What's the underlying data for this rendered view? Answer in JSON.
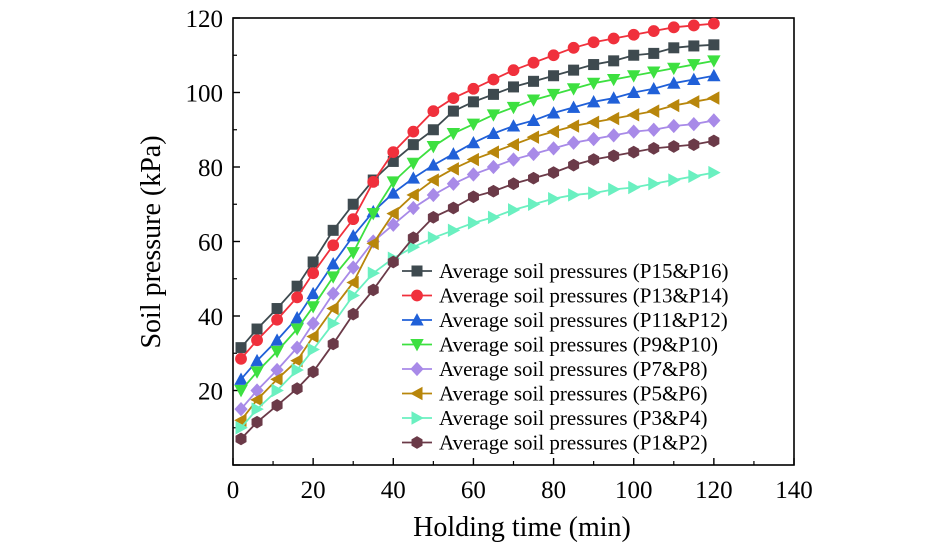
{
  "chart_data": {
    "type": "line",
    "title": "",
    "xlabel": "Holding time (min)",
    "ylabel": "Soil pressure (kPa)",
    "xlim": [
      0,
      140
    ],
    "ylim": [
      0,
      120
    ],
    "xticks": [
      0,
      20,
      40,
      60,
      80,
      100,
      120,
      140
    ],
    "yticks": [
      20,
      40,
      60,
      80,
      100,
      120
    ],
    "grid": false,
    "legend_position": "center-right",
    "x": [
      2,
      6,
      11,
      16,
      20,
      25,
      30,
      35,
      40,
      45,
      50,
      55,
      60,
      65,
      70,
      75,
      80,
      85,
      90,
      95,
      100,
      105,
      110,
      115,
      120
    ],
    "series": [
      {
        "name": "Average soil pressures (P15&P16)",
        "color": "#3e4a4f",
        "marker": "square",
        "values": [
          31.5,
          36.5,
          42,
          48,
          54.5,
          63,
          70,
          76.5,
          81.5,
          86,
          90,
          95,
          97.5,
          99.5,
          101.5,
          103,
          104.5,
          106,
          107.5,
          108.5,
          110,
          110.5,
          112,
          112.5,
          112.8
        ]
      },
      {
        "name": "Average soil pressures (P13&P14)",
        "color": "#f0303c",
        "marker": "circle",
        "values": [
          28.5,
          33.5,
          39,
          45,
          51.5,
          59,
          66,
          76,
          84,
          89.5,
          95,
          98.5,
          101,
          103.5,
          106,
          108,
          110,
          112,
          113.5,
          114.5,
          115.5,
          116.5,
          117.5,
          118,
          118.5
        ]
      },
      {
        "name": "Average soil pressures (P11&P12)",
        "color": "#2060d8",
        "marker": "triangle-up",
        "values": [
          23,
          28,
          33.5,
          39.5,
          46,
          54,
          61.5,
          68,
          73,
          77,
          80.5,
          83.5,
          86.5,
          89,
          91,
          92.5,
          94.5,
          96,
          97.5,
          98.5,
          100,
          101,
          102.5,
          103.5,
          104.5
        ]
      },
      {
        "name": "Average soil pressures (P9&P10)",
        "color": "#3de040",
        "marker": "triangle-down",
        "values": [
          20,
          25,
          30.5,
          36.5,
          42.5,
          50.5,
          57,
          67.5,
          76,
          81,
          85.5,
          89,
          91.5,
          94,
          96,
          98,
          99.5,
          101,
          102.5,
          103.5,
          104.5,
          105.5,
          106.5,
          107.5,
          108.5
        ]
      },
      {
        "name": "Average soil pressures (P7&P8)",
        "color": "#a88ae8",
        "marker": "diamond",
        "values": [
          15,
          20,
          25.5,
          31.5,
          38,
          46,
          53,
          60,
          64.5,
          69,
          72.5,
          75.5,
          78,
          80,
          82,
          83.5,
          85,
          86.5,
          87.5,
          88.5,
          89.5,
          90,
          91,
          91.5,
          92.5
        ]
      },
      {
        "name": "Average soil pressures (P5&P6)",
        "color": "#b8860b",
        "marker": "triangle-left",
        "values": [
          12,
          17.5,
          23,
          28,
          34.5,
          42,
          49,
          59.5,
          67.5,
          72.5,
          76.5,
          79.5,
          82,
          84,
          86,
          88,
          89.5,
          91,
          92,
          93,
          94,
          95,
          96.5,
          97.5,
          98.5
        ]
      },
      {
        "name": "Average soil pressures (P3&P4)",
        "color": "#6af0c0",
        "marker": "triangle-right",
        "values": [
          10,
          15,
          20,
          25.5,
          31,
          38,
          45.5,
          51.5,
          55.5,
          58.5,
          61,
          63,
          65,
          66.5,
          68.5,
          70,
          71.5,
          72.5,
          73,
          74,
          74.5,
          75.5,
          76.5,
          77.5,
          78.5
        ]
      },
      {
        "name": "Average soil pressures (P1&P2)",
        "color": "#6b3a48",
        "marker": "hexagon",
        "values": [
          7,
          11.5,
          16,
          20.5,
          25,
          32.5,
          40.5,
          47,
          54.5,
          61,
          66.5,
          69,
          72,
          73.5,
          75.5,
          77,
          78.5,
          80.5,
          82,
          83,
          84,
          85,
          85.5,
          86,
          87
        ]
      }
    ]
  }
}
